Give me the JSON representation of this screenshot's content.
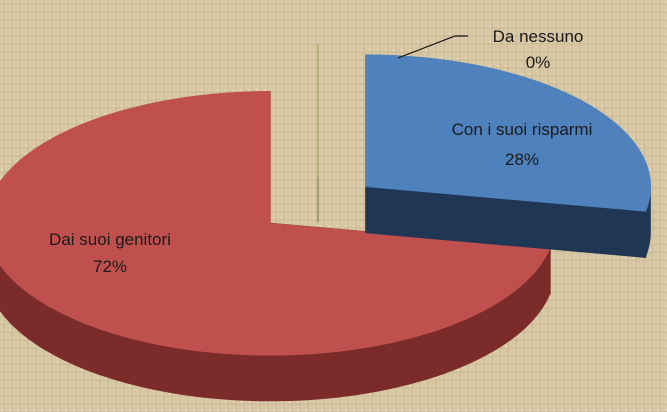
{
  "chart_data": {
    "type": "pie",
    "categories": [
      "Con i suoi risparmi",
      "Dai suoi genitori",
      "Da nessuno"
    ],
    "values": [
      28,
      72,
      0
    ],
    "value_labels": [
      "28%",
      "72%",
      "0%"
    ],
    "colors": [
      "#4f81bd",
      "#c0504d",
      "#9bbb59"
    ],
    "side_colors": [
      "#1f3654",
      "#7b2b29",
      "#5e7a2e"
    ],
    "three_d": true,
    "exploded": true
  }
}
